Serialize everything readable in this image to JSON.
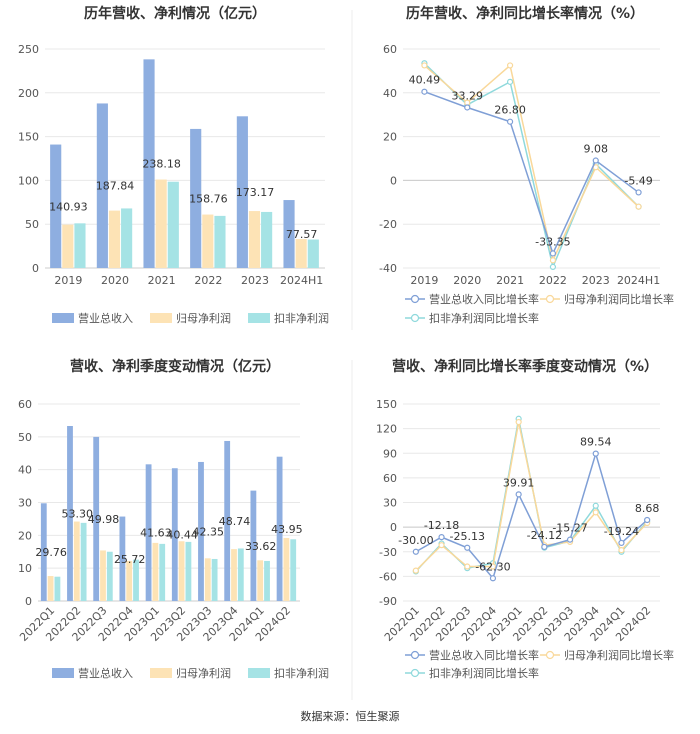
{
  "colors": {
    "revenue": "#8eaee0",
    "net": "#fde3b5",
    "deducted": "#a5e3e5",
    "grid": "#e8e8e8",
    "axis": "#999999",
    "text": "#555555"
  },
  "chart_data": [
    {
      "type": "bar",
      "title": "历年营收、净利情况（亿元）",
      "categories": [
        "2019",
        "2020",
        "2021",
        "2022",
        "2023",
        "2024H1"
      ],
      "ylim": [
        0,
        250
      ],
      "yticks": [
        0,
        50,
        100,
        150,
        200,
        250
      ],
      "series": [
        {
          "name": "营业总收入",
          "key": "revenue",
          "values": [
            140.93,
            187.84,
            238.18,
            158.76,
            173.17,
            77.57
          ],
          "labels": [
            "140.93",
            "187.84",
            "238.18",
            "158.76",
            "173.17",
            "77.57"
          ]
        },
        {
          "name": "归母净利润",
          "key": "net",
          "values": [
            49.5,
            65.5,
            101,
            61,
            65,
            33
          ]
        },
        {
          "name": "扣非净利润",
          "key": "deducted",
          "values": [
            51,
            68,
            98.5,
            59.5,
            64,
            32.5
          ]
        }
      ],
      "legend": [
        "营业总收入",
        "归母净利润",
        "扣非净利润"
      ]
    },
    {
      "type": "line",
      "title": "历年营收、净利同比增长率情况（%）",
      "categories": [
        "2019",
        "2020",
        "2021",
        "2022",
        "2023",
        "2024H1"
      ],
      "ylim": [
        -40,
        60
      ],
      "yticks": [
        -40,
        -20,
        0,
        20,
        40,
        60
      ],
      "series": [
        {
          "name": "营业总收入同比增长率",
          "key": "revenue",
          "values": [
            40.49,
            33.29,
            26.8,
            -33.35,
            9.08,
            -5.49
          ],
          "labels": [
            "40.49",
            "33.29",
            "26.80",
            "-33.35",
            "9.08",
            "-5.49"
          ]
        },
        {
          "name": "归母净利润同比增长率",
          "key": "net",
          "values": [
            52.5,
            35.5,
            52.5,
            -36.5,
            6,
            -12
          ]
        },
        {
          "name": "扣非净利润同比增长率",
          "key": "deducted",
          "values": [
            53.5,
            34.5,
            45,
            -39.5,
            7.5,
            -12
          ]
        }
      ],
      "legend": [
        "营业总收入同比增长率",
        "归母净利润同比增长率",
        "扣非净利润同比增长率"
      ]
    },
    {
      "type": "bar",
      "title": "营收、净利季度变动情况（亿元）",
      "categories": [
        "2022Q1",
        "2022Q2",
        "2022Q3",
        "2022Q4",
        "2023Q1",
        "2023Q2",
        "2023Q3",
        "2023Q4",
        "2024Q1",
        "2024Q2"
      ],
      "ylim": [
        0,
        60
      ],
      "yticks": [
        0,
        10,
        20,
        30,
        40,
        50,
        60
      ],
      "series": [
        {
          "name": "营业总收入",
          "key": "revenue",
          "values": [
            29.76,
            53.3,
            49.98,
            25.72,
            41.63,
            40.44,
            42.35,
            48.74,
            33.62,
            43.95
          ],
          "labels": [
            "29.76",
            "53.30",
            "49.98",
            "25.72",
            "41.63",
            "40.44",
            "42.35",
            "48.74",
            "33.62",
            "43.95"
          ]
        },
        {
          "name": "归母净利润",
          "key": "net",
          "values": [
            7.6,
            24.2,
            15.4,
            12.2,
            17.7,
            18.2,
            13,
            15.8,
            12.4,
            19.2
          ]
        },
        {
          "name": "扣非净利润",
          "key": "deducted",
          "values": [
            7.4,
            23.8,
            15,
            12.6,
            17.4,
            18,
            12.8,
            16,
            12.2,
            18.8
          ]
        }
      ],
      "legend": [
        "营业总收入",
        "归母净利润",
        "扣非净利润"
      ]
    },
    {
      "type": "line",
      "title": "营收、净利同比增长率季度变动情况（%）",
      "categories": [
        "2022Q1",
        "2022Q2",
        "2022Q3",
        "2022Q4",
        "2023Q1",
        "2023Q2",
        "2023Q3",
        "2023Q4",
        "2024Q1",
        "2024Q2"
      ],
      "ylim": [
        -90,
        150
      ],
      "yticks": [
        -90,
        -60,
        -30,
        0,
        30,
        60,
        90,
        120,
        150
      ],
      "series": [
        {
          "name": "营业总收入同比增长率",
          "key": "revenue",
          "values": [
            -30,
            -12.18,
            -25.13,
            -62.3,
            39.91,
            -24.12,
            -15.27,
            89.54,
            -19.24,
            8.68
          ],
          "labels": [
            "-30.00",
            "-12.18",
            "-25.13",
            "-62.30",
            "39.91",
            "-24.12",
            "-15.27",
            "89.54",
            "-19.24",
            "8.68"
          ]
        },
        {
          "name": "归母净利润同比增长率",
          "key": "net",
          "values": [
            -53,
            -22,
            -48,
            -48,
            128,
            -22,
            -18,
            18,
            -28,
            5
          ]
        },
        {
          "name": "扣非净利润同比增长率",
          "key": "deducted",
          "values": [
            -54,
            -20,
            -50,
            -44,
            132,
            -25,
            -17,
            26,
            -30,
            7
          ]
        }
      ],
      "legend": [
        "营业总收入同比增长率",
        "归母净利润同比增长率",
        "扣非净利润同比增长率"
      ]
    }
  ],
  "footer": "数据来源：恒生聚源"
}
